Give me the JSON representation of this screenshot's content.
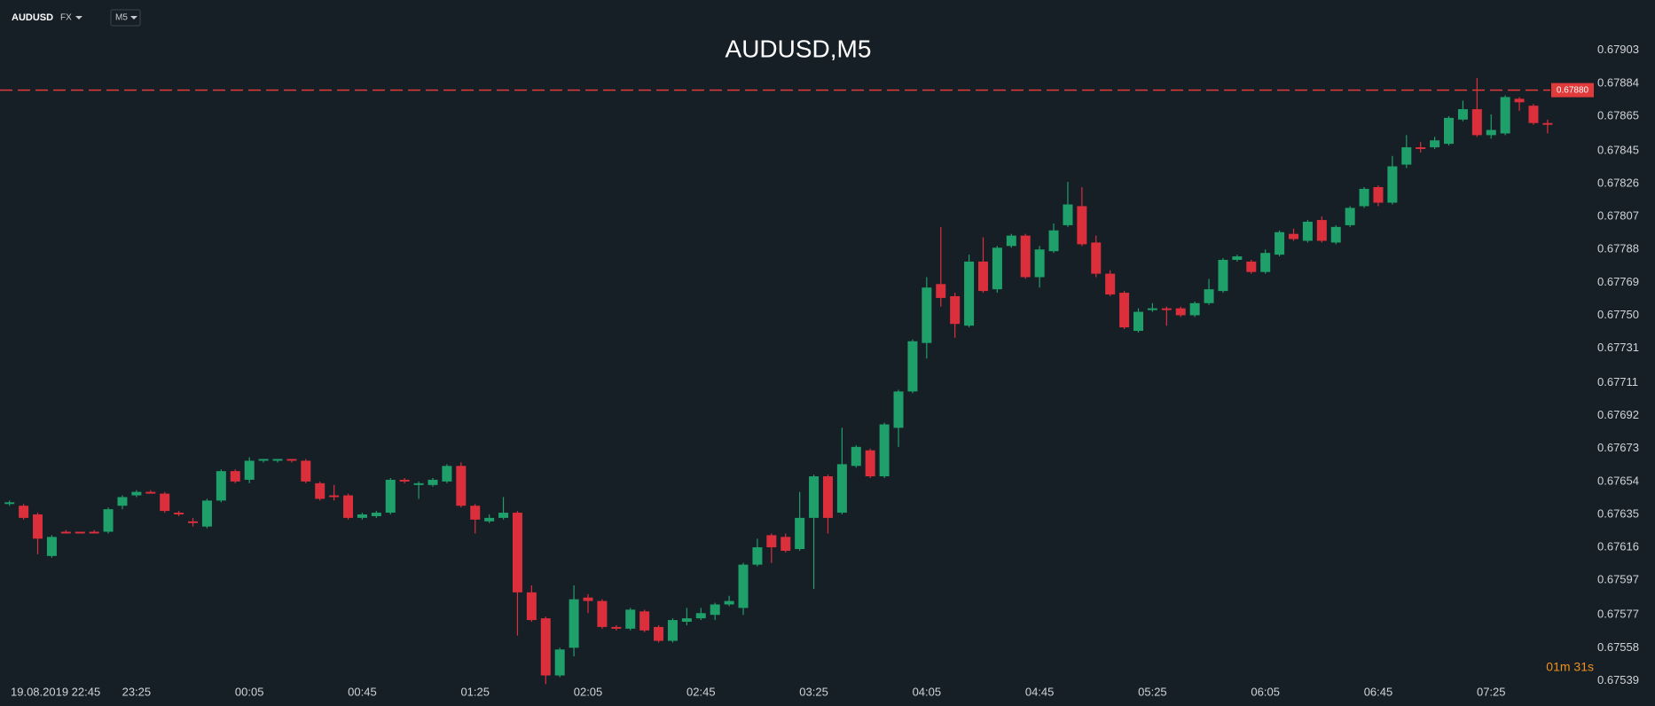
{
  "toolbar": {
    "symbol": "AUDUSD",
    "market": "FX",
    "timeframe": "M5"
  },
  "chart_data": {
    "type": "candlestick",
    "title": "AUDUSD,M5",
    "up_color": "#1fa06a",
    "down_color": "#dc2f3c",
    "categories": [
      null,
      "19.08.2019 22:45",
      null,
      null,
      null,
      null,
      null,
      null,
      null,
      "23:25",
      null,
      null,
      null,
      null,
      null,
      null,
      null,
      "00:05",
      null,
      null,
      null,
      null,
      null,
      null,
      null,
      "00:45",
      null,
      null,
      null,
      null,
      null,
      null,
      null,
      "01:25",
      null,
      null,
      null,
      null,
      null,
      null,
      null,
      "02:05",
      null,
      null,
      null,
      null,
      null,
      null,
      null,
      "02:45",
      null,
      null,
      null,
      null,
      null,
      null,
      null,
      "03:25",
      null,
      null,
      null,
      null,
      null,
      null,
      null,
      "04:05",
      null,
      null,
      null,
      null,
      null,
      null,
      null,
      "04:45",
      null,
      null,
      null,
      null,
      null,
      null,
      null,
      "05:25",
      null,
      null,
      null,
      null,
      null,
      null,
      null,
      "06:05",
      null,
      null,
      null,
      null,
      null,
      null,
      null,
      "06:45",
      null,
      null,
      null,
      null,
      null,
      null,
      null,
      "07:25",
      null,
      null,
      null,
      null
    ],
    "open": [
      0.67641,
      0.6764,
      0.67635,
      0.67611,
      0.67625,
      0.67625,
      0.67625,
      0.67625,
      0.6764,
      0.67646,
      0.67648,
      0.67647,
      0.67636,
      0.67631,
      0.67628,
      0.67643,
      0.6766,
      0.67655,
      0.67666,
      0.67666,
      0.67667,
      0.67666,
      0.67653,
      0.67646,
      0.67646,
      0.67633,
      0.67634,
      0.67636,
      0.67655,
      0.67652,
      0.67652,
      0.67654,
      0.67663,
      0.6764,
      0.67631,
      0.67633,
      0.67636,
      0.6759,
      0.67575,
      0.67542,
      0.67558,
      0.67587,
      0.67585,
      0.6757,
      0.67569,
      0.67579,
      0.6757,
      0.67562,
      0.67573,
      0.67575,
      0.67577,
      0.67583,
      0.67581,
      0.67606,
      0.67623,
      0.67622,
      0.67615,
      0.67633,
      0.67657,
      0.67636,
      0.67663,
      0.67672,
      0.67657,
      0.67685,
      0.67706,
      0.67734,
      0.67768,
      0.67761,
      0.67744,
      0.67781,
      0.67765,
      0.6779,
      0.67796,
      0.67772,
      0.67787,
      0.67802,
      0.67813,
      0.67792,
      0.67774,
      0.67763,
      0.67741,
      0.67753,
      0.67754,
      0.67754,
      0.6775,
      0.67757,
      0.67764,
      0.67782,
      0.67781,
      0.67775,
      0.67785,
      0.67797,
      0.67793,
      0.67805,
      0.67792,
      0.67802,
      0.67813,
      0.67824,
      0.67815,
      0.67837,
      0.67847,
      0.67847,
      0.67849,
      0.67863,
      0.67869,
      0.67854,
      0.67855,
      0.67875,
      0.67871,
      0.67861
    ],
    "high": [
      0.67643,
      0.67641,
      0.67636,
      0.67623,
      0.67626,
      0.67625,
      0.67626,
      0.67639,
      0.67646,
      0.67649,
      0.67649,
      0.67648,
      0.67637,
      0.67633,
      0.67644,
      0.67661,
      0.67661,
      0.67668,
      0.67667,
      0.67667,
      0.67667,
      0.67667,
      0.67654,
      0.67652,
      0.67647,
      0.67636,
      0.67637,
      0.67656,
      0.67656,
      0.67654,
      0.67656,
      0.67664,
      0.67665,
      0.67641,
      0.67635,
      0.67645,
      0.67637,
      0.67594,
      0.67576,
      0.67558,
      0.67594,
      0.67589,
      0.67586,
      0.67571,
      0.67581,
      0.6758,
      0.67571,
      0.67575,
      0.67581,
      0.67581,
      0.67584,
      0.67588,
      0.67607,
      0.67621,
      0.67624,
      0.67624,
      0.67648,
      0.67658,
      0.67658,
      0.67685,
      0.67675,
      0.67673,
      0.67688,
      0.67707,
      0.67736,
      0.67772,
      0.67801,
      0.67763,
      0.67785,
      0.67795,
      0.6779,
      0.67797,
      0.67797,
      0.6779,
      0.67803,
      0.67827,
      0.67824,
      0.67796,
      0.67776,
      0.67764,
      0.67754,
      0.67757,
      0.67755,
      0.67755,
      0.67758,
      0.67771,
      0.67783,
      0.67785,
      0.67782,
      0.67788,
      0.67799,
      0.678,
      0.67805,
      0.67807,
      0.67802,
      0.67813,
      0.67824,
      0.67825,
      0.67842,
      0.67854,
      0.6785,
      0.67853,
      0.67865,
      0.67874,
      0.67887,
      0.67866,
      0.67877,
      0.67876,
      0.67872,
      0.67863
    ],
    "low": [
      0.6764,
      0.67632,
      0.67612,
      0.6761,
      0.67624,
      0.67624,
      0.67624,
      0.67624,
      0.67638,
      0.67645,
      0.67647,
      0.67636,
      0.67634,
      0.67628,
      0.67627,
      0.67642,
      0.67653,
      0.67653,
      0.67665,
      0.67665,
      0.67665,
      0.67653,
      0.67643,
      0.67643,
      0.67632,
      0.67632,
      0.67633,
      0.67635,
      0.67653,
      0.67644,
      0.67651,
      0.67653,
      0.67639,
      0.67624,
      0.6763,
      0.67632,
      0.67565,
      0.67573,
      0.67537,
      0.67541,
      0.67553,
      0.67578,
      0.67569,
      0.67568,
      0.67568,
      0.67567,
      0.67561,
      0.67561,
      0.67571,
      0.67574,
      0.67574,
      0.67582,
      0.67577,
      0.67605,
      0.67607,
      0.67613,
      0.67614,
      0.67592,
      0.67624,
      0.67635,
      0.67662,
      0.67656,
      0.67656,
      0.67674,
      0.67705,
      0.67725,
      0.67755,
      0.67737,
      0.67743,
      0.67763,
      0.67763,
      0.67789,
      0.67771,
      0.67766,
      0.67786,
      0.67801,
      0.6779,
      0.67772,
      0.67761,
      0.67742,
      0.6774,
      0.67752,
      0.67744,
      0.67749,
      0.67749,
      0.67756,
      0.67763,
      0.67781,
      0.67774,
      0.67774,
      0.67784,
      0.67793,
      0.67792,
      0.67792,
      0.67791,
      0.67801,
      0.67812,
      0.67813,
      0.67814,
      0.67835,
      0.67844,
      0.67846,
      0.67848,
      0.67862,
      0.67853,
      0.67852,
      0.67854,
      0.67868,
      0.6786,
      0.67855
    ],
    "close": [
      0.67642,
      0.67633,
      0.67621,
      0.67622,
      0.67624,
      0.67624,
      0.67624,
      0.67638,
      0.67645,
      0.67648,
      0.67647,
      0.67637,
      0.67635,
      0.6763,
      0.67643,
      0.6766,
      0.67654,
      0.67666,
      0.67667,
      0.67667,
      0.67666,
      0.67654,
      0.67644,
      0.67645,
      0.67633,
      0.67635,
      0.67636,
      0.67655,
      0.67654,
      0.67653,
      0.67655,
      0.67663,
      0.6764,
      0.67632,
      0.67633,
      0.67636,
      0.6759,
      0.67574,
      0.67542,
      0.67557,
      0.67586,
      0.67585,
      0.6757,
      0.67569,
      0.6758,
      0.67568,
      0.67562,
      0.67574,
      0.67575,
      0.67578,
      0.67583,
      0.67585,
      0.67606,
      0.67616,
      0.67616,
      0.67614,
      0.67633,
      0.67657,
      0.67633,
      0.67664,
      0.67674,
      0.67657,
      0.67687,
      0.67706,
      0.67735,
      0.67766,
      0.6776,
      0.67745,
      0.67781,
      0.67764,
      0.67789,
      0.67796,
      0.67772,
      0.67788,
      0.67799,
      0.67814,
      0.67791,
      0.67774,
      0.67762,
      0.67743,
      0.67752,
      0.67754,
      0.67753,
      0.6775,
      0.67757,
      0.67765,
      0.67782,
      0.67784,
      0.67775,
      0.67786,
      0.67798,
      0.67794,
      0.67804,
      0.67793,
      0.67801,
      0.67812,
      0.67823,
      0.67815,
      0.67836,
      0.67847,
      0.67846,
      0.67851,
      0.67864,
      0.67869,
      0.67854,
      0.67857,
      0.67876,
      0.67873,
      0.67861,
      0.6786
    ],
    "ylim": [
      0.6753,
      0.6793
    ],
    "yticks": [
      0.67903,
      0.67884,
      0.67865,
      0.67845,
      0.67826,
      0.67807,
      0.67788,
      0.67769,
      {
        "value": 0.6775,
        "label": "0.67750"
      },
      0.67731,
      0.67711,
      0.67692,
      0.67673,
      0.67654,
      0.67635,
      0.67616,
      0.67597,
      0.67577,
      0.67558,
      0.67539
    ],
    "grid": false,
    "current_price": {
      "value": 0.6788,
      "label": "0.67880"
    },
    "price_line_color": "#e03a3a",
    "timer": "01m 31s"
  }
}
